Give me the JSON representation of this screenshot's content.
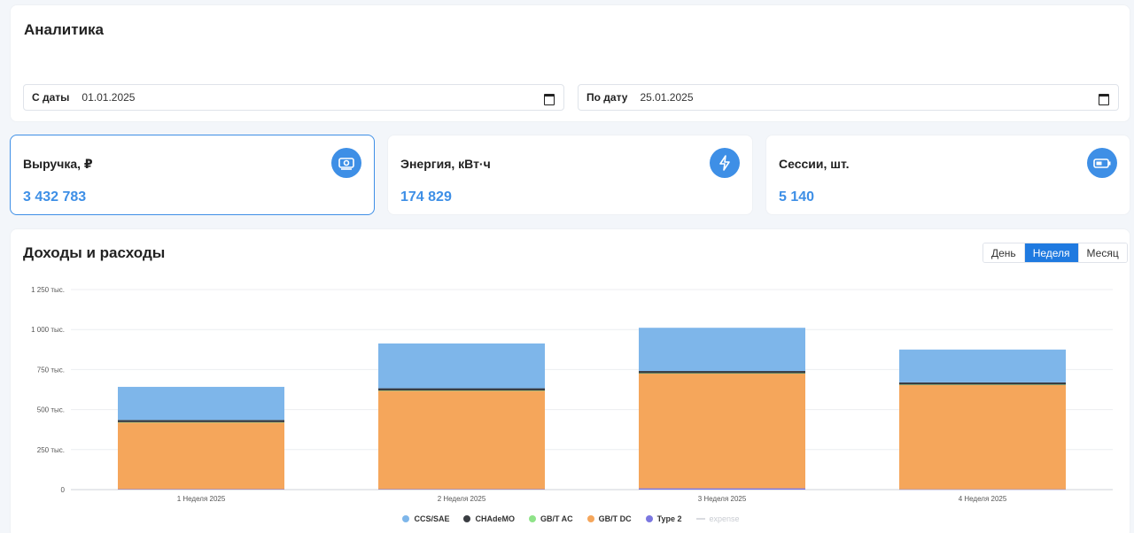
{
  "filters": {
    "title": "Аналитика",
    "from_label": "С даты",
    "from_value": "01.01.2025",
    "to_label": "По дату",
    "to_value": "25.01.2025"
  },
  "kpis": [
    {
      "label": "Выручка, ₽",
      "value": "3 432 783",
      "icon": "money-icon"
    },
    {
      "label": "Энергия, кВт·ч",
      "value": "174 829",
      "icon": "lightning-icon"
    },
    {
      "label": "Сессии, шт.",
      "value": "5 140",
      "icon": "battery-icon"
    }
  ],
  "chart_section": {
    "title": "Доходы и расходы",
    "periods": [
      "День",
      "Неделя",
      "Месяц"
    ],
    "active_period": "Неделя"
  },
  "colors": {
    "accent": "#3e8fe6",
    "ccs": "#7eb6ea",
    "chademo": "#3a3d42",
    "gbt_ac": "#8fe389",
    "gbt_dc": "#f5a65b",
    "type2": "#7b77e0",
    "expense": "#d9dbe0"
  },
  "chart_data": {
    "type": "bar",
    "stacked": true,
    "categories": [
      "1 Неделя 2025",
      "2 Неделя 2025",
      "3 Неделя 2025",
      "4 Неделя 2025"
    ],
    "series": [
      {
        "name": "CCS/SAE",
        "values": [
          207000,
          280000,
          270000,
          205000
        ]
      },
      {
        "name": "CHAdeMO",
        "values": [
          14000,
          14000,
          14000,
          14000
        ]
      },
      {
        "name": "GB/T AC",
        "values": [
          1000,
          1000,
          1000,
          1000
        ]
      },
      {
        "name": "GB/T DC",
        "values": [
          417000,
          615000,
          718000,
          653000
        ]
      },
      {
        "name": "Type 2",
        "values": [
          3000,
          3000,
          8000,
          2000
        ]
      },
      {
        "name": "expense",
        "values": [
          0,
          0,
          0,
          0
        ]
      }
    ],
    "yticks": [
      "0",
      "250 тыс.",
      "500 тыс.",
      "750 тыс.",
      "1 000 тыс.",
      "1 250 тыс."
    ],
    "ylim": [
      0,
      1250000
    ],
    "grid": true,
    "legend_position": "bottom"
  }
}
